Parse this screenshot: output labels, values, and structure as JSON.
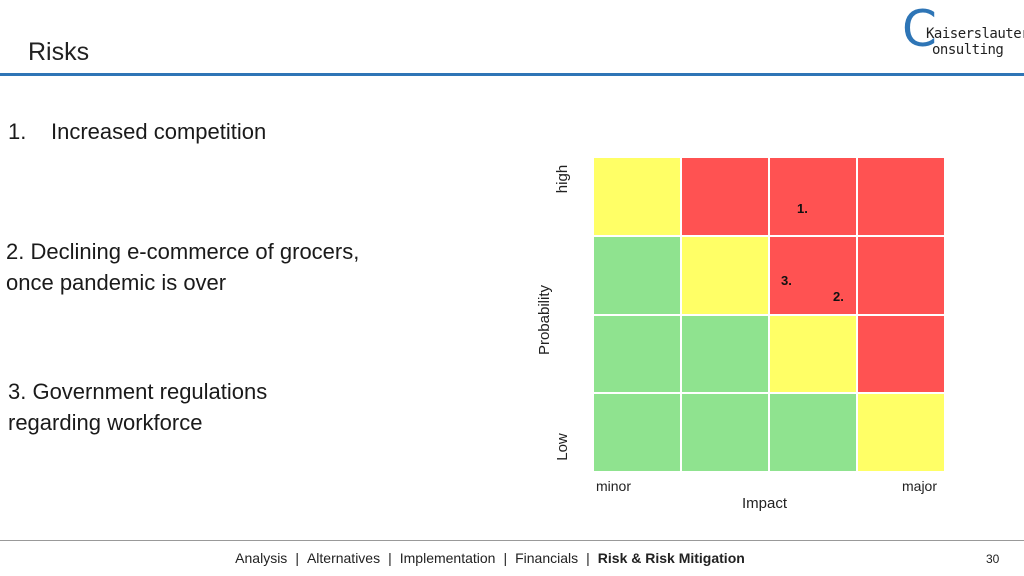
{
  "slide": {
    "title": "Risks",
    "page_number": "30"
  },
  "logo": {
    "letter": "C",
    "line1": "Kaiserslautern",
    "line2": "onsulting"
  },
  "risks": [
    {
      "number": "1.",
      "text": "Increased competition"
    },
    {
      "line1": "2. Declining e-commerce of grocers,",
      "line2": "once pandemic is over"
    },
    {
      "line1": "3. Government regulations",
      "line2": "regarding workforce"
    }
  ],
  "matrix": {
    "y_label": "Probability",
    "y_high": "high",
    "y_low": "Low",
    "x_label": "Impact",
    "x_min": "minor",
    "x_max": "major",
    "colors": {
      "red": "#ff5252",
      "yellow": "#ffff66",
      "green": "#8fe38f"
    },
    "grid": [
      [
        "yellow",
        "red",
        "red",
        "red"
      ],
      [
        "green",
        "yellow",
        "red",
        "red"
      ],
      [
        "green",
        "green",
        "yellow",
        "red"
      ],
      [
        "green",
        "green",
        "green",
        "yellow"
      ]
    ],
    "markers": [
      {
        "label": "1.",
        "row": 0,
        "col": 2
      },
      {
        "label": "3.",
        "row": 1,
        "col": 2
      },
      {
        "label": "2.",
        "row": 1,
        "col": 2
      }
    ]
  },
  "footer": {
    "items": [
      "Analysis",
      "Alternatives",
      "Implementation",
      "Financials",
      "Risk & Risk Mitigation"
    ],
    "separator": "|",
    "active_index": 4
  }
}
